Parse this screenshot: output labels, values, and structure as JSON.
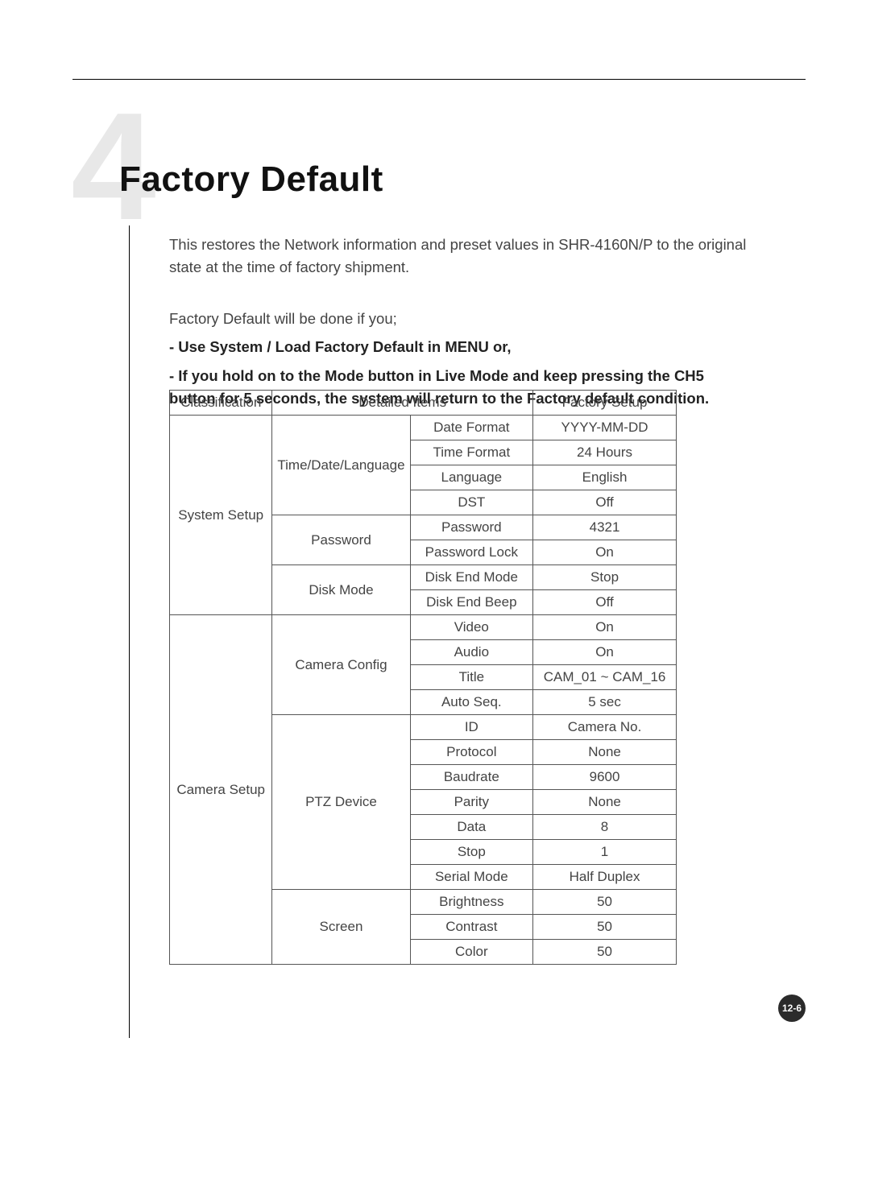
{
  "chapter_number": "4",
  "title": "Factory Default",
  "intro": "This restores the Network information and preset values in SHR-4160N/P to the original state at the time of factory shipment.",
  "lead_in": "Factory Default will be done if you;",
  "bullet1": "- Use System / Load Factory Default in MENU or,",
  "bullet2": "- If you hold on to the Mode button in Live Mode and keep pressing the CH5 button for 5 seconds, the system will return to the Factory default condition.",
  "table": {
    "headers": {
      "classification": "Classification",
      "detailed": "Detailed Items",
      "factory": "Factory Setup"
    },
    "groups": [
      {
        "classification": "System Setup",
        "sections": [
          {
            "name": "Time/Date/Language",
            "rows": [
              {
                "item": "Date Format",
                "value": "YYYY-MM-DD"
              },
              {
                "item": "Time Format",
                "value": "24 Hours"
              },
              {
                "item": "Language",
                "value": "English"
              },
              {
                "item": "DST",
                "value": "Off"
              }
            ]
          },
          {
            "name": "Password",
            "rows": [
              {
                "item": "Password",
                "value": "4321"
              },
              {
                "item": "Password Lock",
                "value": "On"
              }
            ]
          },
          {
            "name": "Disk Mode",
            "rows": [
              {
                "item": "Disk End Mode",
                "value": "Stop"
              },
              {
                "item": "Disk End Beep",
                "value": "Off"
              }
            ]
          }
        ]
      },
      {
        "classification": "Camera Setup",
        "sections": [
          {
            "name": "Camera Config",
            "rows": [
              {
                "item": "Video",
                "value": "On"
              },
              {
                "item": "Audio",
                "value": "On"
              },
              {
                "item": "Title",
                "value": "CAM_01 ~ CAM_16"
              },
              {
                "item": "Auto Seq.",
                "value": "5 sec"
              }
            ]
          },
          {
            "name": "PTZ Device",
            "rows": [
              {
                "item": "ID",
                "value": "Camera No."
              },
              {
                "item": "Protocol",
                "value": "None"
              },
              {
                "item": "Baudrate",
                "value": "9600"
              },
              {
                "item": "Parity",
                "value": "None"
              },
              {
                "item": "Data",
                "value": "8"
              },
              {
                "item": "Stop",
                "value": "1"
              },
              {
                "item": "Serial Mode",
                "value": "Half Duplex"
              }
            ]
          },
          {
            "name": "Screen",
            "rows": [
              {
                "item": "Brightness",
                "value": "50"
              },
              {
                "item": "Contrast",
                "value": "50"
              },
              {
                "item": "Color",
                "value": "50"
              }
            ]
          }
        ]
      }
    ]
  },
  "page_number": "12-6",
  "colors": {
    "background": "#ffffff",
    "text": "#444444",
    "chapter_number": "#e8e8e8",
    "rule": "#000000",
    "border": "#555555",
    "badge_bg": "#2b2b2b",
    "badge_fg": "#ffffff"
  },
  "fonts": {
    "title_size_pt": 33,
    "body_size_pt": 14,
    "table_size_pt": 13
  }
}
